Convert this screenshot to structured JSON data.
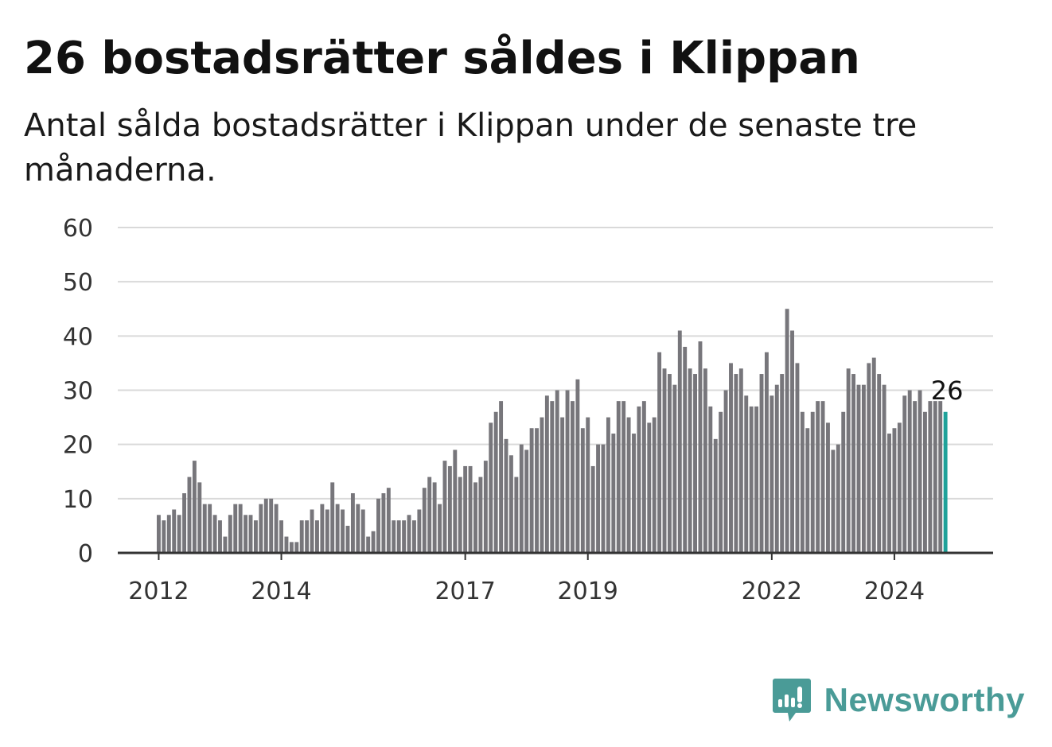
{
  "title": "26 bostadsrätter såldes i Klippan",
  "subtitle": "Antal sålda bostadsrätter i Klippan under de senaste tre månaderna.",
  "brand": {
    "name": "Newsworthy",
    "icon": "newsworthy-logo-icon",
    "color": "#4a9b97"
  },
  "colors": {
    "bar": "#77767b",
    "highlight": "#1fa29a",
    "grid": "#d9d9d9",
    "axis": "#333333"
  },
  "chart_data": {
    "type": "bar",
    "title": "26 bostadsrätter såldes i Klippan",
    "xlabel": "",
    "ylabel": "",
    "ylim": [
      0,
      60
    ],
    "yticks": [
      0,
      10,
      20,
      30,
      40,
      50,
      60
    ],
    "grid": true,
    "xticks": [
      {
        "label": "2012",
        "date": "2012-01"
      },
      {
        "label": "2014",
        "date": "2014-01"
      },
      {
        "label": "2017",
        "date": "2017-01"
      },
      {
        "label": "2019",
        "date": "2019-01"
      },
      {
        "label": "2022",
        "date": "2022-01"
      },
      {
        "label": "2024",
        "date": "2024-01"
      }
    ],
    "start_month": "2012-01",
    "values": [
      7,
      6,
      7,
      8,
      7,
      11,
      14,
      17,
      13,
      9,
      9,
      7,
      6,
      3,
      7,
      9,
      9,
      7,
      7,
      6,
      9,
      10,
      10,
      9,
      6,
      3,
      2,
      2,
      6,
      6,
      8,
      6,
      9,
      8,
      13,
      9,
      8,
      5,
      11,
      9,
      8,
      3,
      4,
      10,
      11,
      12,
      6,
      6,
      6,
      7,
      6,
      8,
      12,
      14,
      13,
      9,
      17,
      16,
      19,
      14,
      16,
      16,
      13,
      14,
      17,
      24,
      26,
      28,
      21,
      18,
      14,
      20,
      19,
      23,
      23,
      25,
      29,
      28,
      30,
      25,
      30,
      28,
      32,
      23,
      25,
      16,
      20,
      20,
      25,
      22,
      28,
      28,
      25,
      22,
      27,
      28,
      24,
      25,
      37,
      34,
      33,
      31,
      41,
      38,
      34,
      33,
      39,
      34,
      27,
      21,
      26,
      30,
      35,
      33,
      34,
      29,
      27,
      27,
      33,
      37,
      29,
      31,
      33,
      45,
      41,
      35,
      26,
      23,
      26,
      28,
      28,
      24,
      19,
      20,
      26,
      34,
      33,
      31,
      31,
      35,
      36,
      33,
      31,
      22,
      23,
      24,
      29,
      30,
      28,
      30,
      26,
      28,
      28,
      28,
      26
    ],
    "highlight_last": true,
    "last_value_label": "26"
  }
}
